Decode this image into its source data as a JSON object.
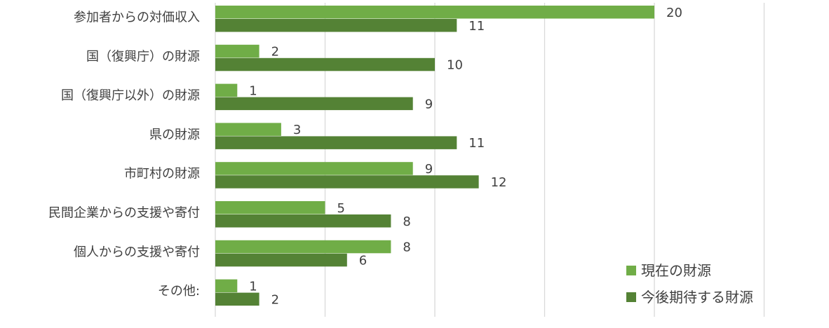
{
  "chart_data": {
    "type": "bar",
    "orientation": "horizontal",
    "categories": [
      "参加者からの対価収入",
      "国（復興庁）の財源",
      "国（復興庁以外）の財源",
      "県の財源",
      "市町村の財源",
      "民間企業からの支援や寄付",
      "個人からの支援や寄付",
      "その他:"
    ],
    "series": [
      {
        "name": "現在の財源",
        "color": "#70ad47",
        "values": [
          20,
          2,
          1,
          3,
          9,
          5,
          8,
          1
        ]
      },
      {
        "name": "今後期待する財源",
        "color": "#548235",
        "values": [
          11,
          10,
          9,
          11,
          12,
          8,
          6,
          2
        ]
      }
    ],
    "xlim": [
      0,
      25
    ],
    "gridlines": true,
    "grid_step": 5,
    "data_labels": true,
    "legend_position": "bottom-right",
    "title": "",
    "xlabel": "",
    "ylabel": ""
  }
}
